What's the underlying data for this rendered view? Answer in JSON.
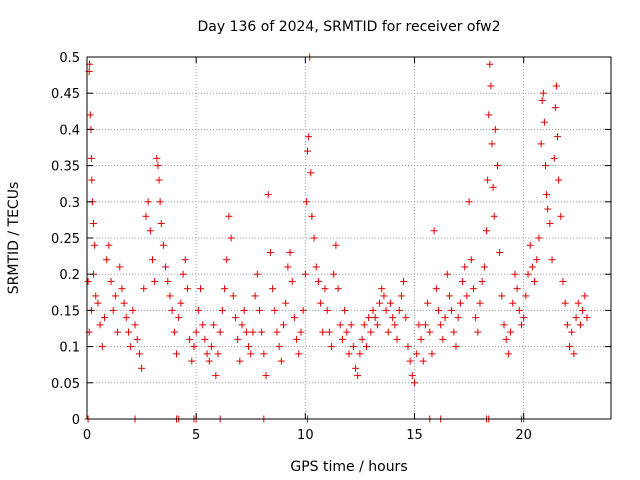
{
  "chart_data": {
    "type": "scatter",
    "title": "Day 136 of 2024, SRMTID for receiver ofw2",
    "xlabel": "GPS time / hours",
    "ylabel": "SRMTID / TECUs",
    "xlim": [
      0,
      24
    ],
    "ylim": [
      0,
      0.5
    ],
    "xticks": [
      0,
      5,
      10,
      15,
      20
    ],
    "xtick_labels": [
      "0",
      "5",
      "10",
      "15",
      "20"
    ],
    "yticks": [
      0,
      0.05,
      0.1,
      0.15,
      0.2,
      0.25,
      0.3,
      0.35,
      0.4,
      0.45,
      0.5
    ],
    "ytick_labels": [
      "0",
      "0.05",
      "0.1",
      "0.15",
      "0.2",
      "0.25",
      "0.3",
      "0.35",
      "0.4",
      "0.45",
      "0.5"
    ],
    "grid": true,
    "marker": "plus",
    "color": "#e00000",
    "series": [
      {
        "name": "SRMTID",
        "description": "approximate digitization",
        "points": [
          [
            0.05,
            0.19
          ],
          [
            0.1,
            0.48
          ],
          [
            0.12,
            0.49
          ],
          [
            0.15,
            0.42
          ],
          [
            0.18,
            0.4
          ],
          [
            0.2,
            0.36
          ],
          [
            0.22,
            0.33
          ],
          [
            0.25,
            0.3
          ],
          [
            0.3,
            0.27
          ],
          [
            0.35,
            0.24
          ],
          [
            0.1,
            0.12
          ],
          [
            0.2,
            0.15
          ],
          [
            0.3,
            0.2
          ],
          [
            0.4,
            0.17
          ],
          [
            0.5,
            0.16
          ],
          [
            0.6,
            0.13
          ],
          [
            0.7,
            0.1
          ],
          [
            0.8,
            0.14
          ],
          [
            0.9,
            0.22
          ],
          [
            1.0,
            0.24
          ],
          [
            1.1,
            0.19
          ],
          [
            1.2,
            0.15
          ],
          [
            1.3,
            0.17
          ],
          [
            1.4,
            0.12
          ],
          [
            1.5,
            0.21
          ],
          [
            1.6,
            0.18
          ],
          [
            1.7,
            0.16
          ],
          [
            1.8,
            0.14
          ],
          [
            1.9,
            0.12
          ],
          [
            2.0,
            0.1
          ],
          [
            2.1,
            0.15
          ],
          [
            2.2,
            0.13
          ],
          [
            2.3,
            0.11
          ],
          [
            2.4,
            0.09
          ],
          [
            2.5,
            0.07
          ],
          [
            2.6,
            0.18
          ],
          [
            2.7,
            0.28
          ],
          [
            2.8,
            0.3
          ],
          [
            2.9,
            0.26
          ],
          [
            3.0,
            0.22
          ],
          [
            3.1,
            0.19
          ],
          [
            3.2,
            0.36
          ],
          [
            3.25,
            0.35
          ],
          [
            3.3,
            0.33
          ],
          [
            3.35,
            0.3
          ],
          [
            3.4,
            0.27
          ],
          [
            3.5,
            0.24
          ],
          [
            3.6,
            0.21
          ],
          [
            3.7,
            0.19
          ],
          [
            3.8,
            0.17
          ],
          [
            3.9,
            0.15
          ],
          [
            4.0,
            0.12
          ],
          [
            4.1,
            0.09
          ],
          [
            4.2,
            0.14
          ],
          [
            4.3,
            0.16
          ],
          [
            4.4,
            0.2
          ],
          [
            4.5,
            0.22
          ],
          [
            4.6,
            0.18
          ],
          [
            4.7,
            0.11
          ],
          [
            4.8,
            0.08
          ],
          [
            4.9,
            0.1
          ],
          [
            5.0,
            0.12
          ],
          [
            5.1,
            0.15
          ],
          [
            5.2,
            0.18
          ],
          [
            5.3,
            0.13
          ],
          [
            5.4,
            0.11
          ],
          [
            5.5,
            0.09
          ],
          [
            5.6,
            0.08
          ],
          [
            5.7,
            0.1
          ],
          [
            5.8,
            0.13
          ],
          [
            5.9,
            0.06
          ],
          [
            6.0,
            0.09
          ],
          [
            6.1,
            0.12
          ],
          [
            6.2,
            0.15
          ],
          [
            6.3,
            0.18
          ],
          [
            6.4,
            0.22
          ],
          [
            6.5,
            0.28
          ],
          [
            6.6,
            0.25
          ],
          [
            6.7,
            0.17
          ],
          [
            6.8,
            0.14
          ],
          [
            6.9,
            0.11
          ],
          [
            7.0,
            0.08
          ],
          [
            7.1,
            0.13
          ],
          [
            7.2,
            0.15
          ],
          [
            7.3,
            0.12
          ],
          [
            7.4,
            0.1
          ],
          [
            7.5,
            0.09
          ],
          [
            7.6,
            0.12
          ],
          [
            7.7,
            0.17
          ],
          [
            7.8,
            0.2
          ],
          [
            7.9,
            0.15
          ],
          [
            8.0,
            0.12
          ],
          [
            8.1,
            0.09
          ],
          [
            8.2,
            0.06
          ],
          [
            8.3,
            0.31
          ],
          [
            8.4,
            0.23
          ],
          [
            8.5,
            0.18
          ],
          [
            8.6,
            0.15
          ],
          [
            8.7,
            0.12
          ],
          [
            8.8,
            0.1
          ],
          [
            8.9,
            0.08
          ],
          [
            9.0,
            0.13
          ],
          [
            9.1,
            0.16
          ],
          [
            9.2,
            0.21
          ],
          [
            9.3,
            0.23
          ],
          [
            9.4,
            0.19
          ],
          [
            9.5,
            0.14
          ],
          [
            9.6,
            0.11
          ],
          [
            9.7,
            0.09
          ],
          [
            9.8,
            0.12
          ],
          [
            9.9,
            0.15
          ],
          [
            10.0,
            0.2
          ],
          [
            10.05,
            0.3
          ],
          [
            10.1,
            0.37
          ],
          [
            10.15,
            0.39
          ],
          [
            10.2,
            0.5
          ],
          [
            10.25,
            0.34
          ],
          [
            10.3,
            0.28
          ],
          [
            10.4,
            0.25
          ],
          [
            10.5,
            0.21
          ],
          [
            10.6,
            0.19
          ],
          [
            10.7,
            0.16
          ],
          [
            10.8,
            0.12
          ],
          [
            10.9,
            0.18
          ],
          [
            11.0,
            0.15
          ],
          [
            11.1,
            0.12
          ],
          [
            11.2,
            0.1
          ],
          [
            11.3,
            0.2
          ],
          [
            11.4,
            0.24
          ],
          [
            11.5,
            0.18
          ],
          [
            11.6,
            0.13
          ],
          [
            11.7,
            0.11
          ],
          [
            11.8,
            0.15
          ],
          [
            11.9,
            0.12
          ],
          [
            12.0,
            0.09
          ],
          [
            12.1,
            0.13
          ],
          [
            12.2,
            0.1
          ],
          [
            12.3,
            0.07
          ],
          [
            12.4,
            0.06
          ],
          [
            12.5,
            0.09
          ],
          [
            12.6,
            0.11
          ],
          [
            12.7,
            0.13
          ],
          [
            12.8,
            0.1
          ],
          [
            12.9,
            0.14
          ],
          [
            13.0,
            0.12
          ],
          [
            13.1,
            0.15
          ],
          [
            13.2,
            0.14
          ],
          [
            13.3,
            0.13
          ],
          [
            13.4,
            0.16
          ],
          [
            13.5,
            0.18
          ],
          [
            13.6,
            0.17
          ],
          [
            13.7,
            0.15
          ],
          [
            13.8,
            0.12
          ],
          [
            13.9,
            0.16
          ],
          [
            14.0,
            0.14
          ],
          [
            14.1,
            0.13
          ],
          [
            14.2,
            0.11
          ],
          [
            14.3,
            0.15
          ],
          [
            14.4,
            0.17
          ],
          [
            14.5,
            0.19
          ],
          [
            14.6,
            0.14
          ],
          [
            14.7,
            0.1
          ],
          [
            14.8,
            0.08
          ],
          [
            14.9,
            0.06
          ],
          [
            15.0,
            0.05
          ],
          [
            15.1,
            0.09
          ],
          [
            15.2,
            0.13
          ],
          [
            15.3,
            0.11
          ],
          [
            15.4,
            0.08
          ],
          [
            15.5,
            0.13
          ],
          [
            15.6,
            0.16
          ],
          [
            15.7,
            0.12
          ],
          [
            15.8,
            0.09
          ],
          [
            15.9,
            0.26
          ],
          [
            16.0,
            0.18
          ],
          [
            16.1,
            0.15
          ],
          [
            16.2,
            0.13
          ],
          [
            16.3,
            0.11
          ],
          [
            16.4,
            0.14
          ],
          [
            16.5,
            0.2
          ],
          [
            16.6,
            0.17
          ],
          [
            16.7,
            0.15
          ],
          [
            16.8,
            0.12
          ],
          [
            16.9,
            0.1
          ],
          [
            17.0,
            0.14
          ],
          [
            17.1,
            0.16
          ],
          [
            17.2,
            0.19
          ],
          [
            17.3,
            0.21
          ],
          [
            17.4,
            0.17
          ],
          [
            17.5,
            0.3
          ],
          [
            17.6,
            0.22
          ],
          [
            17.7,
            0.18
          ],
          [
            17.8,
            0.14
          ],
          [
            17.9,
            0.12
          ],
          [
            18.0,
            0.16
          ],
          [
            18.1,
            0.19
          ],
          [
            18.2,
            0.21
          ],
          [
            18.3,
            0.26
          ],
          [
            18.35,
            0.33
          ],
          [
            18.4,
            0.42
          ],
          [
            18.45,
            0.49
          ],
          [
            18.5,
            0.46
          ],
          [
            18.55,
            0.38
          ],
          [
            18.6,
            0.32
          ],
          [
            18.65,
            0.28
          ],
          [
            18.7,
            0.4
          ],
          [
            18.8,
            0.35
          ],
          [
            18.9,
            0.23
          ],
          [
            19.0,
            0.17
          ],
          [
            19.1,
            0.13
          ],
          [
            19.2,
            0.11
          ],
          [
            19.3,
            0.09
          ],
          [
            19.4,
            0.12
          ],
          [
            19.5,
            0.16
          ],
          [
            19.6,
            0.2
          ],
          [
            19.7,
            0.18
          ],
          [
            19.8,
            0.15
          ],
          [
            19.9,
            0.13
          ],
          [
            20.0,
            0.14
          ],
          [
            20.1,
            0.17
          ],
          [
            20.2,
            0.2
          ],
          [
            20.3,
            0.24
          ],
          [
            20.4,
            0.21
          ],
          [
            20.5,
            0.19
          ],
          [
            20.6,
            0.22
          ],
          [
            20.7,
            0.25
          ],
          [
            20.8,
            0.38
          ],
          [
            20.85,
            0.44
          ],
          [
            20.9,
            0.45
          ],
          [
            20.95,
            0.41
          ],
          [
            21.0,
            0.35
          ],
          [
            21.05,
            0.31
          ],
          [
            21.1,
            0.29
          ],
          [
            21.2,
            0.27
          ],
          [
            21.3,
            0.22
          ],
          [
            21.4,
            0.36
          ],
          [
            21.45,
            0.43
          ],
          [
            21.5,
            0.46
          ],
          [
            21.55,
            0.39
          ],
          [
            21.6,
            0.33
          ],
          [
            21.7,
            0.28
          ],
          [
            21.8,
            0.19
          ],
          [
            21.9,
            0.16
          ],
          [
            22.0,
            0.13
          ],
          [
            22.1,
            0.1
          ],
          [
            22.2,
            0.12
          ],
          [
            22.3,
            0.09
          ],
          [
            22.4,
            0.14
          ],
          [
            22.5,
            0.16
          ],
          [
            22.6,
            0.13
          ],
          [
            22.7,
            0.15
          ],
          [
            22.8,
            0.17
          ],
          [
            22.9,
            0.14
          ],
          [
            0.05,
            0
          ],
          [
            2.2,
            0
          ],
          [
            4.1,
            0
          ],
          [
            4.2,
            0
          ],
          [
            4.9,
            0
          ],
          [
            5.0,
            0
          ],
          [
            6.1,
            0
          ],
          [
            8.1,
            0
          ],
          [
            10.1,
            0
          ],
          [
            15.7,
            0
          ],
          [
            16.2,
            0
          ],
          [
            18.3,
            0
          ],
          [
            18.4,
            0
          ],
          [
            19.9,
            0
          ],
          [
            20.0,
            0
          ]
        ]
      }
    ]
  }
}
